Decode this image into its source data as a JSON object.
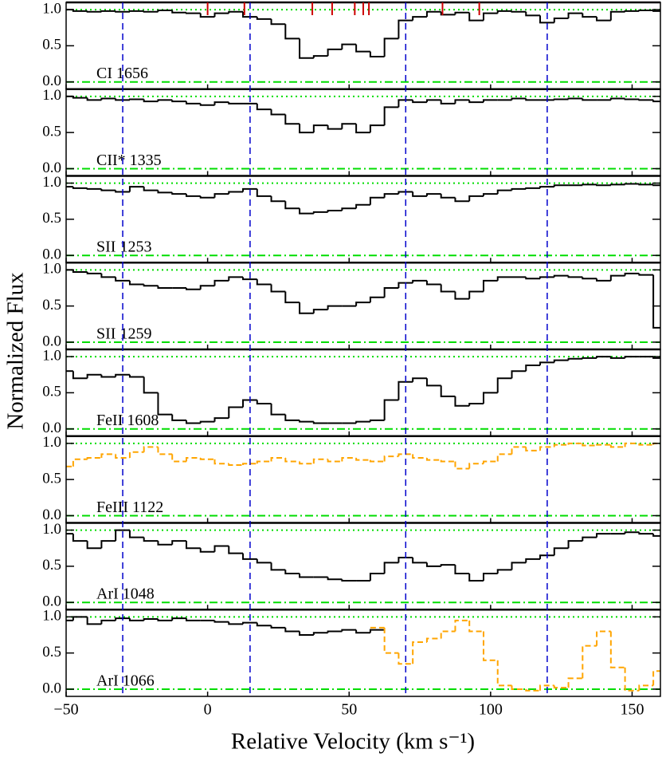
{
  "chart_data": {
    "type": "line",
    "step": true,
    "x_label": "Relative Velocity  (km s⁻¹)",
    "y_label": "Normalized Flux",
    "x": [
      -50,
      -45,
      -40,
      -35,
      -30,
      -25,
      -20,
      -15,
      -10,
      -5,
      0,
      5,
      10,
      15,
      20,
      25,
      30,
      35,
      40,
      45,
      50,
      55,
      60,
      65,
      70,
      75,
      80,
      85,
      90,
      95,
      100,
      105,
      110,
      115,
      120,
      125,
      130,
      135,
      140,
      145,
      150,
      155,
      160
    ],
    "xlim": [
      -50,
      160
    ],
    "xticks": [
      {
        "value": -50,
        "label": "−50"
      },
      0,
      50,
      100,
      150
    ],
    "vlines": [
      -30,
      15,
      70,
      120
    ],
    "vline_color": "#0000cc",
    "reference_color": "#00dd00",
    "panels": [
      {
        "label": "CI 1656",
        "ylim": [
          -0.1,
          1.1
        ],
        "yticks": [
          {
            "value": 0,
            "label": "0.0"
          },
          0.5,
          {
            "value": 1,
            "label": "1.0"
          }
        ],
        "markers": [
          0,
          13,
          37,
          44,
          52,
          55,
          57,
          83,
          96
        ],
        "marker_color": "#cc0000",
        "series": [
          {
            "color": "#000000",
            "values": [
              1.0,
              0.98,
              0.97,
              0.98,
              0.97,
              0.98,
              0.97,
              0.99,
              0.96,
              0.95,
              0.9,
              0.95,
              0.97,
              0.9,
              0.87,
              0.8,
              0.6,
              0.33,
              0.36,
              0.45,
              0.52,
              0.42,
              0.35,
              0.6,
              0.85,
              0.9,
              0.97,
              0.93,
              0.96,
              0.85,
              0.95,
              0.98,
              0.97,
              0.92,
              0.82,
              0.88,
              0.95,
              0.9,
              0.85,
              0.97,
              0.98,
              0.99,
              0.98
            ]
          }
        ]
      },
      {
        "label": "CII* 1335",
        "ylim": [
          -0.1,
          1.1
        ],
        "yticks": [
          {
            "value": 0,
            "label": "0.0"
          },
          0.5,
          {
            "value": 1,
            "label": "1.0"
          }
        ],
        "series": [
          {
            "color": "#000000",
            "values": [
              1.0,
              0.98,
              0.95,
              0.97,
              0.95,
              0.96,
              0.93,
              0.95,
              0.93,
              0.9,
              0.88,
              0.92,
              0.9,
              0.9,
              0.82,
              0.75,
              0.62,
              0.5,
              0.6,
              0.55,
              0.62,
              0.5,
              0.6,
              0.85,
              0.95,
              0.92,
              0.95,
              0.9,
              0.95,
              0.92,
              0.95,
              0.95,
              0.97,
              0.95,
              0.95,
              0.96,
              0.97,
              0.95,
              0.95,
              0.97,
              0.96,
              0.95,
              0.93
            ]
          }
        ]
      },
      {
        "label": "SII 1253",
        "ylim": [
          -0.1,
          1.1
        ],
        "yticks": [
          {
            "value": 0,
            "label": "0.0"
          },
          0.5,
          {
            "value": 1,
            "label": "1.0"
          }
        ],
        "series": [
          {
            "color": "#000000",
            "values": [
              0.95,
              0.93,
              0.92,
              0.9,
              0.88,
              0.95,
              0.9,
              0.87,
              0.85,
              0.82,
              0.8,
              0.85,
              0.88,
              0.92,
              0.82,
              0.75,
              0.65,
              0.58,
              0.6,
              0.62,
              0.65,
              0.7,
              0.8,
              0.85,
              0.88,
              0.82,
              0.85,
              0.8,
              0.75,
              0.82,
              0.85,
              0.9,
              0.92,
              0.93,
              0.95,
              0.97,
              0.97,
              0.98,
              0.97,
              0.98,
              0.99,
              0.98,
              0.97
            ]
          }
        ]
      },
      {
        "label": "SII 1259",
        "ylim": [
          -0.1,
          1.1
        ],
        "yticks": [
          {
            "value": 0,
            "label": "0.0"
          },
          0.5,
          {
            "value": 1,
            "label": "1.0"
          }
        ],
        "series": [
          {
            "color": "#000000",
            "values": [
              1.0,
              0.97,
              0.95,
              0.9,
              0.85,
              0.8,
              0.78,
              0.75,
              0.75,
              0.73,
              0.78,
              0.85,
              0.9,
              0.87,
              0.8,
              0.7,
              0.55,
              0.4,
              0.45,
              0.5,
              0.5,
              0.55,
              0.62,
              0.75,
              0.82,
              0.85,
              0.8,
              0.7,
              0.6,
              0.7,
              0.85,
              0.9,
              0.9,
              0.88,
              0.9,
              0.92,
              0.9,
              0.88,
              0.85,
              0.92,
              0.95,
              0.93,
              0.2
            ]
          }
        ]
      },
      {
        "label": "FeII 1608",
        "ylim": [
          -0.1,
          1.1
        ],
        "yticks": [
          {
            "value": 0,
            "label": "0.0"
          },
          0.5,
          {
            "value": 1,
            "label": "1.0"
          }
        ],
        "series": [
          {
            "color": "#000000",
            "values": [
              0.8,
              0.7,
              0.75,
              0.72,
              0.75,
              0.72,
              0.5,
              0.2,
              0.12,
              0.08,
              0.1,
              0.15,
              0.3,
              0.4,
              0.35,
              0.2,
              0.12,
              0.1,
              0.08,
              0.08,
              0.08,
              0.1,
              0.12,
              0.4,
              0.65,
              0.7,
              0.6,
              0.45,
              0.32,
              0.35,
              0.5,
              0.7,
              0.8,
              0.88,
              0.92,
              0.95,
              0.97,
              0.98,
              1.0,
              0.98,
              1.0,
              1.0,
              0.98
            ]
          }
        ]
      },
      {
        "label": "FeIII 1122",
        "ylim": [
          -0.1,
          1.1
        ],
        "yticks": [
          {
            "value": 0,
            "label": "0.0"
          },
          0.5,
          {
            "value": 1,
            "label": "1.0"
          }
        ],
        "series": [
          {
            "color": "#ffa500",
            "dashed": true,
            "values": [
              0.68,
              0.78,
              0.8,
              0.85,
              0.8,
              0.88,
              0.95,
              0.85,
              0.75,
              0.8,
              0.78,
              0.72,
              0.7,
              0.72,
              0.75,
              0.8,
              0.75,
              0.72,
              0.78,
              0.75,
              0.8,
              0.77,
              0.75,
              0.82,
              0.85,
              0.8,
              0.77,
              0.75,
              0.65,
              0.72,
              0.75,
              0.85,
              0.95,
              0.9,
              0.95,
              0.98,
              1.0,
              0.97,
              0.98,
              0.95,
              1.0,
              0.98,
              1.0
            ]
          }
        ]
      },
      {
        "label": "ArI 1048",
        "ylim": [
          -0.1,
          1.1
        ],
        "yticks": [
          {
            "value": 0,
            "label": "0.0"
          },
          0.5,
          {
            "value": 1,
            "label": "1.0"
          }
        ],
        "series": [
          {
            "color": "#000000",
            "values": [
              0.95,
              0.85,
              0.75,
              0.85,
              1.0,
              0.9,
              0.85,
              0.8,
              0.85,
              0.75,
              0.7,
              0.78,
              0.68,
              0.6,
              0.55,
              0.45,
              0.4,
              0.35,
              0.35,
              0.32,
              0.3,
              0.3,
              0.4,
              0.55,
              0.62,
              0.55,
              0.5,
              0.52,
              0.4,
              0.3,
              0.4,
              0.45,
              0.55,
              0.6,
              0.65,
              0.75,
              0.85,
              0.9,
              0.95,
              0.95,
              0.97,
              0.95,
              0.92
            ]
          }
        ]
      },
      {
        "label": "ArI 1066",
        "ylim": [
          -0.1,
          1.1
        ],
        "yticks": [
          {
            "value": 0,
            "label": "0.0"
          },
          0.5,
          {
            "value": 1,
            "label": "1.0"
          }
        ],
        "series": [
          {
            "color": "#000000",
            "values": [
              0.95,
              1.0,
              0.9,
              0.95,
              0.98,
              0.95,
              0.97,
              0.95,
              0.98,
              0.95,
              0.95,
              0.93,
              0.9,
              0.92,
              0.88,
              0.85,
              0.8,
              0.75,
              0.78,
              0.8,
              0.82,
              0.78,
              0.82,
              null,
              null,
              null,
              null,
              null,
              null,
              null,
              null,
              null,
              null,
              null,
              null,
              null,
              null,
              null,
              null,
              null,
              null,
              null,
              null
            ]
          },
          {
            "color": "#ffa500",
            "dashed": true,
            "values": [
              null,
              null,
              null,
              null,
              null,
              null,
              null,
              null,
              null,
              null,
              null,
              null,
              null,
              null,
              null,
              null,
              null,
              null,
              null,
              null,
              null,
              null,
              0.85,
              0.5,
              0.35,
              0.65,
              0.7,
              0.8,
              0.95,
              0.8,
              0.4,
              0.05,
              0.0,
              -0.02,
              0.05,
              0.02,
              0.15,
              0.6,
              0.8,
              0.3,
              -0.02,
              0.05,
              0.25
            ]
          }
        ]
      }
    ]
  }
}
